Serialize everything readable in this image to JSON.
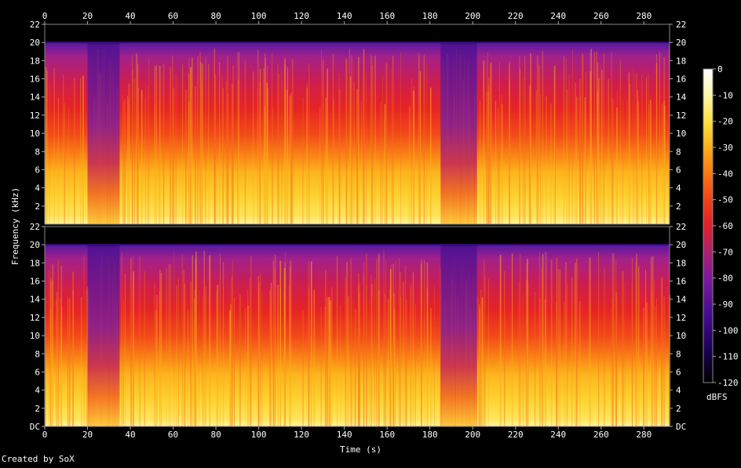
{
  "chart_data": {
    "type": "heatmap",
    "xlabel": "Time (s)",
    "ylabel": "Frequency (kHz)",
    "x_ticks": [
      0,
      20,
      40,
      60,
      80,
      100,
      120,
      140,
      160,
      180,
      200,
      220,
      240,
      260,
      280
    ],
    "xlim": [
      0,
      292
    ],
    "y_ticks_top": [
      "22",
      "20",
      "18",
      "16",
      "14",
      "12",
      "10",
      "8",
      "6",
      "4",
      "2"
    ],
    "y_ticks_bottom": [
      "22",
      "20",
      "18",
      "16",
      "14",
      "12",
      "10",
      "8",
      "6",
      "4",
      "2",
      "DC"
    ],
    "ylim": [
      0,
      22
    ],
    "channels": 2,
    "colorbar": {
      "label": "dBFS",
      "ticks": [
        0,
        -10,
        -20,
        -30,
        -40,
        -50,
        -60,
        -70,
        -80,
        -90,
        -100,
        -110,
        -120
      ],
      "range": [
        -120,
        0
      ],
      "colors": [
        "#000000",
        "#1a0050",
        "#3d0a8a",
        "#7a1a9e",
        "#b0206e",
        "#e0202a",
        "#f2401a",
        "#fa7a12",
        "#fcae1a",
        "#fde040",
        "#fff8b0",
        "#ffffff"
      ]
    },
    "content_cutoff_khz": 20,
    "quiet_segments": [
      [
        20,
        35
      ],
      [
        185,
        202
      ]
    ],
    "end_time_s": 292
  },
  "footer": {
    "credit": "Created by SoX"
  }
}
